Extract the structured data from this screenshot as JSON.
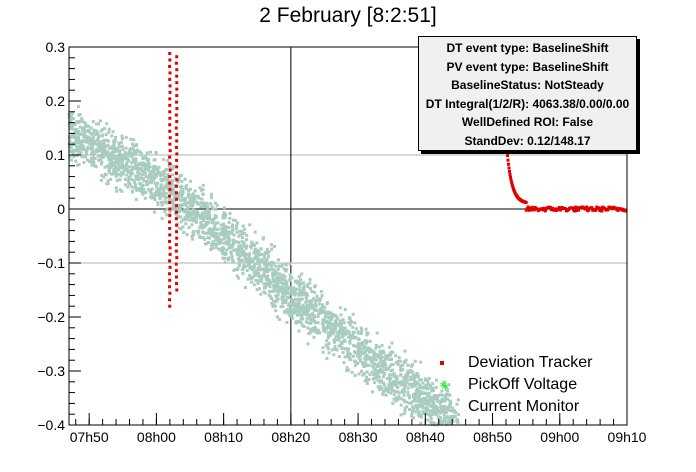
{
  "title": "2 February [8:2:51]",
  "stats": {
    "lines": [
      "DT event type: BaselineShift",
      "PV event type: BaselineShift",
      "BaselineStatus: NotSteady",
      "DT Integral(1/2/R): 4063.38/0.00/0.00",
      "WellDefined ROI: False",
      "StandDev: 0.12/148.17"
    ]
  },
  "legend": {
    "items": [
      {
        "label": "Deviation Tracker",
        "color": "#e00000"
      },
      {
        "label": "PickOff Voltage",
        "color": "#33ee33"
      },
      {
        "label": "Current Monitor",
        "color": "#a9ccc1"
      }
    ]
  },
  "colors": {
    "deviation_tracker": "#e00000",
    "pickoff_voltage": "#33ee33",
    "current_monitor": "#a9ccc1",
    "axis": "#000000",
    "grid": "#b0b0b0"
  },
  "chart_data": {
    "type": "scatter",
    "title": "2 February [8:2:51]",
    "xlabel": "",
    "ylabel": "",
    "xlim_minutes": [
      0,
      83
    ],
    "x_origin_label": "07h47",
    "ylim": [
      -0.4,
      0.3
    ],
    "x_tick_labels": [
      "07h50",
      "08h00",
      "08h10",
      "08h20",
      "08h30",
      "08h40",
      "08h50",
      "09h00",
      "09h10"
    ],
    "y_tick_values": [
      -0.4,
      -0.3,
      -0.2,
      -0.1,
      0,
      0.1,
      0.2,
      0.3
    ],
    "grid": "partial (y=0.1, y=0, y=-0.1 and x=08h20)",
    "legend_position": "bottom-right",
    "series": [
      {
        "name": "Current Monitor",
        "style": "dense square markers",
        "trend_points": [
          {
            "x": "07h47",
            "y": 0.14
          },
          {
            "x": "07h50",
            "y": 0.12
          },
          {
            "x": "08h00",
            "y": 0.05
          },
          {
            "x": "08h05",
            "y": 0.0
          },
          {
            "x": "08h10",
            "y": -0.05
          },
          {
            "x": "08h20",
            "y": -0.16
          },
          {
            "x": "08h30",
            "y": -0.26
          },
          {
            "x": "08h40",
            "y": -0.35
          },
          {
            "x": "08h45",
            "y": -0.4
          }
        ],
        "spread": 0.035
      },
      {
        "name": "Deviation Tracker",
        "style": "small square markers",
        "segments": [
          {
            "x": "08h02",
            "y_range": [
              -0.18,
              0.29
            ]
          },
          {
            "x": "08h03",
            "y_range": [
              -0.15,
              0.29
            ]
          },
          {
            "x_range": [
              "08h52",
              "08h55"
            ],
            "y_from": 0.13,
            "y_to": 0.01
          },
          {
            "x_range": [
              "08h55",
              "09h10"
            ],
            "y": 0.0
          }
        ]
      },
      {
        "name": "PickOff Voltage",
        "style": "star marker",
        "points": [
          {
            "x": "08h43",
            "y": -0.33
          }
        ]
      }
    ]
  }
}
